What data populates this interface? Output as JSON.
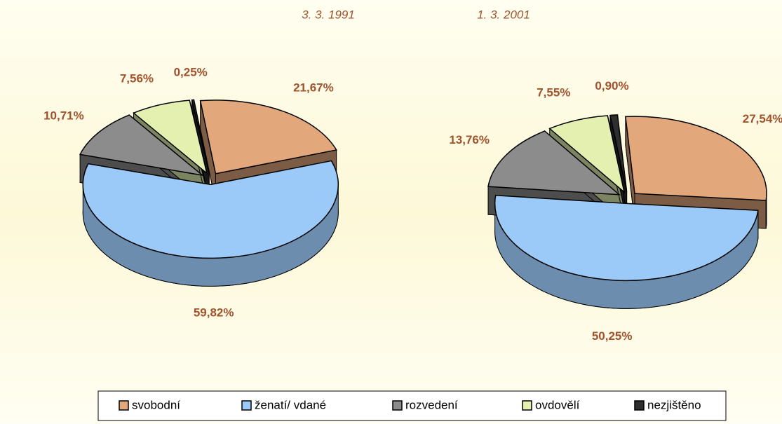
{
  "chart_data": [
    {
      "type": "pie",
      "title": "3. 3. 1991",
      "categories": [
        "svobodní",
        "ženatí/ vdané",
        "rozvedení",
        "ovdovělí",
        "nezjištěno"
      ],
      "colors": [
        "#e2a87c",
        "#9ccaf8",
        "#8c8c8c",
        "#e4f0b0",
        "#2e2e2e"
      ],
      "values": [
        21.67,
        59.82,
        10.71,
        7.56,
        0.25
      ],
      "value_labels": [
        "21,67%",
        "59,82%",
        "10,71%",
        "7,56%",
        "0,25%"
      ],
      "legend": "bottom"
    },
    {
      "type": "pie",
      "title": "1. 3. 2001",
      "values": [
        27.54,
        50.25,
        13.76,
        7.55,
        0.9
      ],
      "value_labels": [
        "27,54%",
        "50,25%",
        "13,76%",
        "7,55%",
        "0,90%"
      ]
    }
  ]
}
